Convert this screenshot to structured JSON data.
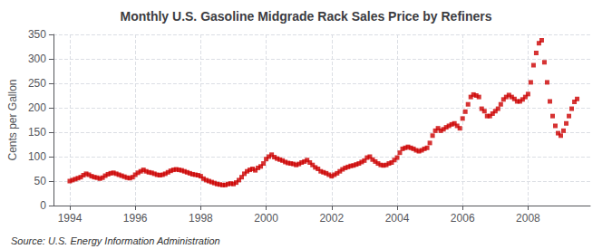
{
  "chart_data": {
    "type": "scatter",
    "title": "Monthly U.S. Gasoline Midgrade Rack Sales Price by Refiners",
    "ylabel": "Cents per Gallon",
    "annotations": [
      "Source: U.S. Energy Information Administration"
    ],
    "color": "#CC0000",
    "marker": "square",
    "grid": true,
    "xlim": [
      1993.5,
      2009.9
    ],
    "ylim": [
      0,
      350
    ],
    "xticks": [
      1994,
      1996,
      1998,
      2000,
      2002,
      2004,
      2006,
      2008
    ],
    "yticks": [
      0,
      50,
      100,
      150,
      200,
      250,
      300,
      350
    ],
    "x": [
      1994.0,
      1994.083,
      1994.167,
      1994.25,
      1994.333,
      1994.417,
      1994.5,
      1994.583,
      1994.667,
      1994.75,
      1994.833,
      1994.917,
      1995.0,
      1995.083,
      1995.167,
      1995.25,
      1995.333,
      1995.417,
      1995.5,
      1995.583,
      1995.667,
      1995.75,
      1995.833,
      1995.917,
      1996.0,
      1996.083,
      1996.167,
      1996.25,
      1996.333,
      1996.417,
      1996.5,
      1996.583,
      1996.667,
      1996.75,
      1996.833,
      1996.917,
      1997.0,
      1997.083,
      1997.167,
      1997.25,
      1997.333,
      1997.417,
      1997.5,
      1997.583,
      1997.667,
      1997.75,
      1997.833,
      1997.917,
      1998.0,
      1998.083,
      1998.167,
      1998.25,
      1998.333,
      1998.417,
      1998.5,
      1998.583,
      1998.667,
      1998.75,
      1998.833,
      1998.917,
      1999.0,
      1999.083,
      1999.167,
      1999.25,
      1999.333,
      1999.417,
      1999.5,
      1999.583,
      1999.667,
      1999.75,
      1999.833,
      1999.917,
      2000.0,
      2000.083,
      2000.167,
      2000.25,
      2000.333,
      2000.417,
      2000.5,
      2000.583,
      2000.667,
      2000.75,
      2000.833,
      2000.917,
      2001.0,
      2001.083,
      2001.167,
      2001.25,
      2001.333,
      2001.417,
      2001.5,
      2001.583,
      2001.667,
      2001.75,
      2001.833,
      2001.917,
      2002.0,
      2002.083,
      2002.167,
      2002.25,
      2002.333,
      2002.417,
      2002.5,
      2002.583,
      2002.667,
      2002.75,
      2002.833,
      2002.917,
      2003.0,
      2003.083,
      2003.167,
      2003.25,
      2003.333,
      2003.417,
      2003.5,
      2003.583,
      2003.667,
      2003.75,
      2003.833,
      2003.917,
      2004.0,
      2004.083,
      2004.167,
      2004.25,
      2004.333,
      2004.417,
      2004.5,
      2004.583,
      2004.667,
      2004.75,
      2004.833,
      2004.917,
      2005.0,
      2005.083,
      2005.167,
      2005.25,
      2005.333,
      2005.417,
      2005.5,
      2005.583,
      2005.667,
      2005.75,
      2005.833,
      2005.917,
      2006.0,
      2006.083,
      2006.167,
      2006.25,
      2006.333,
      2006.417,
      2006.5,
      2006.583,
      2006.667,
      2006.75,
      2006.833,
      2006.917,
      2007.0,
      2007.083,
      2007.167,
      2007.25,
      2007.333,
      2007.417,
      2007.5,
      2007.583,
      2007.667,
      2007.75,
      2007.833,
      2007.917,
      2008.0,
      2008.083,
      2008.167,
      2008.25,
      2008.333,
      2008.417,
      2008.5,
      2008.583,
      2008.667,
      2008.75,
      2008.833,
      2008.917,
      2009.0,
      2009.083,
      2009.167,
      2009.25,
      2009.333,
      2009.417,
      2009.5
    ],
    "values": [
      50,
      52,
      54,
      56,
      58,
      62,
      65,
      63,
      60,
      58,
      57,
      55,
      57,
      61,
      64,
      66,
      67,
      65,
      63,
      61,
      59,
      57,
      56,
      58,
      63,
      67,
      70,
      73,
      70,
      68,
      67,
      65,
      63,
      62,
      63,
      65,
      68,
      71,
      73,
      74,
      73,
      72,
      70,
      68,
      66,
      64,
      63,
      62,
      60,
      55,
      52,
      50,
      48,
      46,
      44,
      43,
      42,
      42,
      44,
      45,
      44,
      47,
      52,
      58,
      65,
      70,
      73,
      75,
      72,
      77,
      80,
      86,
      95,
      100,
      104,
      99,
      96,
      94,
      92,
      89,
      87,
      86,
      85,
      83,
      85,
      88,
      90,
      93,
      88,
      83,
      78,
      75,
      70,
      68,
      66,
      63,
      60,
      63,
      66,
      70,
      74,
      77,
      79,
      81,
      82,
      84,
      86,
      89,
      92,
      98,
      100,
      94,
      90,
      86,
      83,
      82,
      83,
      86,
      88,
      93,
      98,
      108,
      116,
      118,
      120,
      118,
      116,
      113,
      111,
      113,
      116,
      118,
      128,
      143,
      153,
      158,
      153,
      156,
      160,
      163,
      166,
      168,
      163,
      158,
      178,
      192,
      207,
      222,
      227,
      225,
      222,
      198,
      193,
      183,
      183,
      188,
      193,
      198,
      207,
      217,
      222,
      226,
      222,
      218,
      213,
      213,
      217,
      222,
      228,
      252,
      287,
      312,
      332,
      338,
      293,
      252,
      213,
      183,
      163,
      148,
      143,
      153,
      168,
      183,
      198,
      212,
      218
    ]
  }
}
